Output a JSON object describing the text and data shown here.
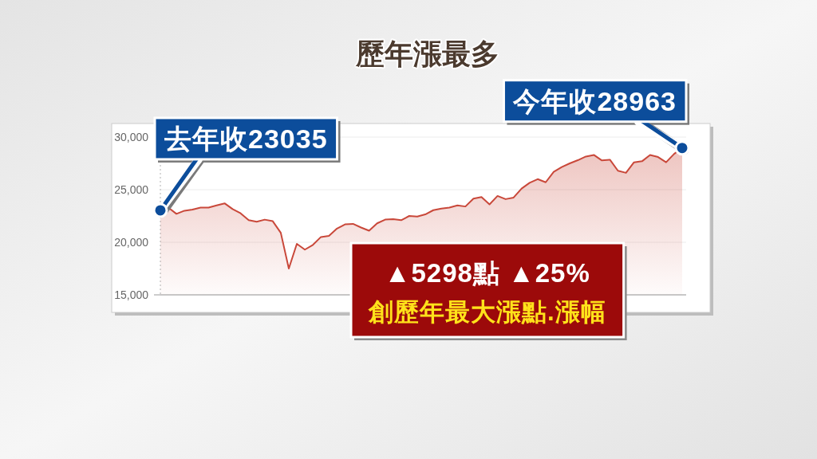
{
  "chart_data": {
    "type": "area",
    "title": "歷年漲最多",
    "categories": [
      null,
      null,
      null,
      null,
      null,
      null,
      null,
      null,
      null,
      null,
      null,
      null,
      null,
      null,
      null,
      null,
      null,
      null,
      null,
      null,
      null,
      null,
      null,
      null,
      null,
      null,
      null,
      null,
      null,
      null,
      null,
      null,
      null,
      null,
      null,
      null,
      null,
      null,
      null,
      null,
      null,
      null,
      null,
      null,
      null,
      null,
      null,
      null,
      null,
      null,
      null,
      null,
      null,
      null,
      null,
      null,
      null,
      null,
      null,
      null,
      null,
      null,
      null,
      null,
      null,
      null
    ],
    "values": [
      23035,
      23300,
      22700,
      23000,
      23100,
      23300,
      23300,
      23500,
      23700,
      23150,
      22750,
      22100,
      21950,
      22150,
      22000,
      20900,
      17500,
      19850,
      19300,
      19750,
      20500,
      20600,
      21300,
      21700,
      21750,
      21400,
      21100,
      21800,
      22150,
      22200,
      22100,
      22500,
      22450,
      22650,
      23050,
      23200,
      23300,
      23500,
      23400,
      24150,
      24300,
      23600,
      24400,
      24100,
      24250,
      25100,
      25650,
      26000,
      25700,
      26700,
      27150,
      27500,
      27800,
      28150,
      28300,
      27780,
      27850,
      26800,
      26600,
      27600,
      27700,
      28300,
      28100,
      27600,
      28400,
      28963
    ],
    "color": "#c9483a",
    "ylim": [
      15000,
      30000
    ],
    "yticks": [
      {
        "value": 15000,
        "label": "15,000"
      },
      {
        "value": 20000,
        "label": "20,000"
      },
      {
        "value": 25000,
        "label": "25,000"
      },
      {
        "value": 30000,
        "label": "30,000"
      }
    ],
    "grid": "y",
    "tick_labels": "y",
    "annotations": [
      "去年收23035",
      "今年收28963",
      "▲5298點 ▲25%",
      "創歷年最大漲點.漲幅"
    ]
  }
}
